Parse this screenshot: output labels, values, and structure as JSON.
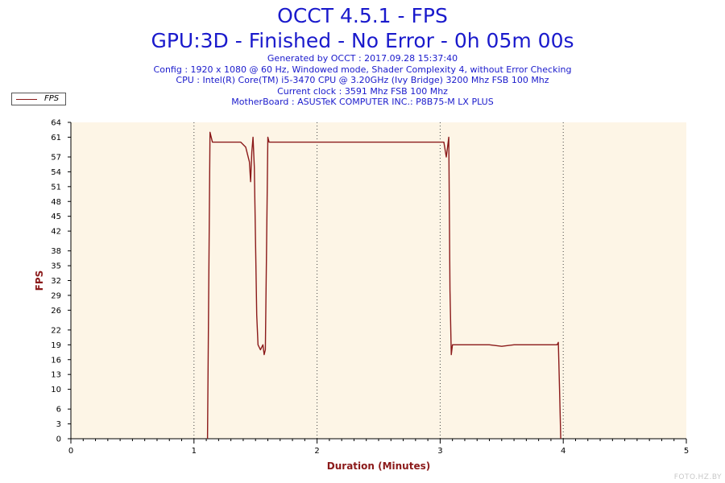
{
  "header": {
    "title_line1": "OCCT 4.5.1 - FPS",
    "title_line2": "GPU:3D - Finished - No Error - 0h 05m 00s",
    "generated": "Generated by OCCT : 2017.09.28 15:37:40",
    "config": "Config : 1920 x 1080 @ 60 Hz, Windowed mode, Shader Complexity 4, without Error Checking",
    "cpu": "CPU : Intel(R) Core(TM) i5-3470 CPU @ 3.20GHz (Ivy Bridge) 3200 Mhz FSB 100 Mhz",
    "clock": "Current clock : 3591 Mhz FSB 100 Mhz",
    "motherboard": "MotherBoard : ASUSTeK COMPUTER INC.: P8B75-M LX PLUS"
  },
  "legend": {
    "label": "FPS"
  },
  "watermark": "FOTO.HZ.BY",
  "chart_data": {
    "type": "line",
    "xlabel": "Duration (Minutes)",
    "ylabel": "FPS",
    "xlim": [
      0,
      5
    ],
    "ylim": [
      0,
      64
    ],
    "x_ticks": [
      "0",
      "1",
      "2",
      "3",
      "4",
      "5"
    ],
    "y_ticks": [
      "0",
      "3",
      "6",
      "10",
      "13",
      "16",
      "19",
      "22",
      "26",
      "29",
      "32",
      "35",
      "38",
      "42",
      "45",
      "48",
      "51",
      "54",
      "57",
      "61",
      "64"
    ],
    "grid": "vertical dotted at major x ticks",
    "legend_position": "top-left",
    "plot_background": "#fdf5e6",
    "line_color": "#8b1a1a",
    "axis_label_color": "#8b1a1a",
    "series": [
      {
        "name": "FPS",
        "points": [
          [
            1.11,
            0
          ],
          [
            1.13,
            62
          ],
          [
            1.15,
            60
          ],
          [
            1.2,
            60
          ],
          [
            1.3,
            60
          ],
          [
            1.38,
            60
          ],
          [
            1.42,
            59
          ],
          [
            1.45,
            56
          ],
          [
            1.46,
            52
          ],
          [
            1.47,
            58
          ],
          [
            1.48,
            61
          ],
          [
            1.49,
            55
          ],
          [
            1.5,
            40
          ],
          [
            1.51,
            25
          ],
          [
            1.52,
            19
          ],
          [
            1.54,
            18
          ],
          [
            1.56,
            19
          ],
          [
            1.57,
            17
          ],
          [
            1.58,
            18
          ],
          [
            1.59,
            40
          ],
          [
            1.6,
            61
          ],
          [
            1.61,
            60
          ],
          [
            1.7,
            60
          ],
          [
            1.8,
            60
          ],
          [
            2.0,
            60
          ],
          [
            2.2,
            60
          ],
          [
            2.5,
            60
          ],
          [
            2.8,
            60
          ],
          [
            3.03,
            60
          ],
          [
            3.05,
            57
          ],
          [
            3.06,
            59
          ],
          [
            3.07,
            61
          ],
          [
            3.08,
            30
          ],
          [
            3.09,
            17
          ],
          [
            3.1,
            19
          ],
          [
            3.2,
            19
          ],
          [
            3.4,
            19
          ],
          [
            3.5,
            18.7
          ],
          [
            3.6,
            19
          ],
          [
            3.8,
            19
          ],
          [
            3.95,
            19
          ],
          [
            3.96,
            19.5
          ],
          [
            3.97,
            10
          ],
          [
            3.98,
            0
          ]
        ]
      }
    ]
  }
}
